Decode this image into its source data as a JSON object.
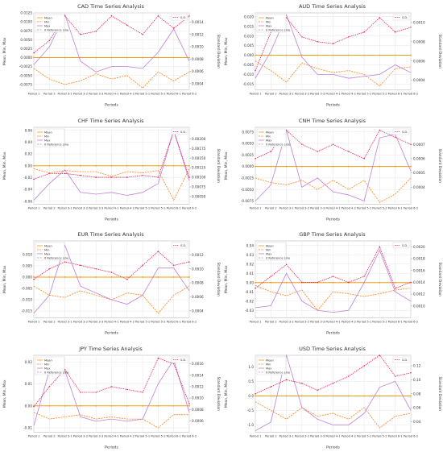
{
  "colors": {
    "mean": "#f39c12",
    "min": "#ff7f0e",
    "max": "#bf7fd8",
    "std": "#e8174f",
    "ref": "#999999",
    "grid": "#e6e6e6",
    "axis": "#333333"
  },
  "shared": {
    "periods": [
      "Period 1",
      "Period 2",
      "Period 3-1",
      "Period 3-2",
      "Period 3-3",
      "Period 4-1",
      "Period 4-2",
      "Period 5-1",
      "Period 5-2",
      "Period 6-1",
      "Period 6-2"
    ],
    "xlabel": "Periods",
    "ylabel_left": "Mean, Min, Max",
    "ylabel_right": "Standard Deviation",
    "legend_left": [
      "Mean",
      "Min",
      "Max",
      "0 Reference Line"
    ],
    "legend_right": [
      "S.D."
    ]
  },
  "chart_data": [
    {
      "type": "line",
      "title": "CAD Time Series Analysis",
      "xlabel": "Periods",
      "ylabel": "Mean, Min, Max",
      "y2label": "Standard Deviation",
      "ylim": [
        -0.009,
        0.0125
      ],
      "y2lim": [
        0.0003,
        0.00155
      ],
      "left_ticks": [
        "0.0125",
        "0.0100",
        "0.0075",
        "0.0050",
        "0.0025",
        "0.0000",
        "-0.0025",
        "-0.0050",
        "-0.0075"
      ],
      "right_ticks": [
        "0.0014",
        "0.0012",
        "0.0010",
        "0.0008",
        "0.0006",
        "0.0004"
      ],
      "series": [
        {
          "name": "Mean",
          "values": [
            0,
            0,
            0,
            0,
            0,
            0,
            0,
            0,
            0,
            0,
            0
          ]
        },
        {
          "name": "Min",
          "values": [
            -0.003,
            -0.006,
            -0.0075,
            -0.0065,
            -0.0045,
            -0.006,
            -0.005,
            -0.0085,
            -0.004,
            -0.0065,
            -0.004
          ]
        },
        {
          "name": "Max",
          "values": [
            -0.002,
            0.003,
            0.012,
            -0.001,
            -0.004,
            -0.0025,
            -0.0025,
            -0.003,
            0.0015,
            0.008,
            -0.001
          ]
        }
      ],
      "std_values": [
        0.0009,
        0.0011,
        0.0015,
        0.0012,
        0.00125,
        0.0015,
        0.00135,
        0.0012,
        0.0015,
        0.0013,
        0.0015
      ]
    },
    {
      "type": "line",
      "title": "AUD Time Series Analysis",
      "xlabel": "Periods",
      "ylabel": "Mean, Min, Max",
      "y2label": "Standard Deviation",
      "ylim": [
        -0.018,
        0.022
      ],
      "y2lim": [
        0.0003,
        0.0011
      ],
      "left_ticks": [
        "0.020",
        "0.015",
        "0.010",
        "0.005",
        "0.000",
        "-0.005",
        "-0.010",
        "-0.015"
      ],
      "right_ticks": [
        "0.0010",
        "0.0008",
        "0.0006",
        "0.0004"
      ],
      "series": [
        {
          "name": "Mean",
          "values": [
            0,
            0,
            0,
            0,
            0,
            0,
            0,
            0,
            0,
            0,
            0
          ]
        },
        {
          "name": "Min",
          "values": [
            -0.003,
            -0.008,
            -0.014,
            -0.004,
            -0.007,
            -0.009,
            -0.008,
            -0.01,
            -0.016,
            -0.007,
            -0.006
          ]
        },
        {
          "name": "Max",
          "values": [
            -0.012,
            0.002,
            0.021,
            -0.001,
            -0.01,
            -0.01,
            -0.012,
            -0.011,
            -0.01,
            -0.005,
            -0.009
          ]
        }
      ],
      "std_values": [
        0.0005,
        0.0009,
        0.00105,
        0.00085,
        0.0008,
        0.00078,
        0.00085,
        0.0009,
        0.00105,
        0.0009,
        0.00095
      ]
    },
    {
      "type": "line",
      "title": "CHF Time Series Analysis",
      "xlabel": "Periods",
      "ylabel": "Mean, Min, Max",
      "y2label": "Standard Deviation",
      "ylim": [
        -0.065,
        0.065
      ],
      "y2lim": [
        0.0003,
        0.0023
      ],
      "left_ticks": [
        "0.06",
        "0.04",
        "0.02",
        "0.00",
        "-0.02",
        "-0.04",
        "-0.06"
      ],
      "right_ticks": [
        "0.00200",
        "0.00175",
        "0.00150",
        "0.00125",
        "0.00100",
        "0.00075",
        "0.00050"
      ],
      "series": [
        {
          "name": "Mean",
          "values": [
            0,
            0,
            0,
            0,
            0,
            0,
            0,
            0,
            0,
            0,
            0
          ]
        },
        {
          "name": "Min",
          "values": [
            -0.005,
            -0.012,
            -0.008,
            -0.01,
            -0.01,
            -0.018,
            -0.01,
            -0.012,
            -0.008,
            -0.058,
            -0.005
          ]
        },
        {
          "name": "Max",
          "values": [
            -0.058,
            -0.03,
            -0.007,
            -0.045,
            -0.048,
            -0.045,
            -0.05,
            -0.045,
            -0.03,
            0.06,
            -0.025
          ]
        }
      ],
      "std_values": [
        0.00095,
        0.0011,
        0.0011,
        0.00105,
        0.001,
        0.001,
        0.001,
        0.00105,
        0.001,
        0.0022,
        0.001
      ]
    },
    {
      "type": "line",
      "title": "CNH Time Series Analysis",
      "xlabel": "Periods",
      "ylabel": "Mean, Min, Max",
      "y2label": "Standard Deviation",
      "ylim": [
        -0.0082,
        0.0085
      ],
      "y2lim": [
        0.00028,
        0.00082
      ],
      "left_ticks": [
        "0.0075",
        "0.0050",
        "0.0025",
        "0.0000",
        "-0.0025",
        "-0.0050",
        "-0.0075"
      ],
      "right_ticks": [
        "0.0007",
        "0.0006",
        "0.0005",
        "0.0004"
      ],
      "series": [
        {
          "name": "Mean",
          "values": [
            0,
            0,
            0,
            0,
            0,
            0,
            0,
            0,
            0,
            0,
            0
          ]
        },
        {
          "name": "Min",
          "values": [
            -0.0025,
            -0.0035,
            -0.004,
            -0.003,
            -0.005,
            -0.003,
            -0.005,
            -0.003,
            -0.0078,
            -0.006,
            -0.0025
          ]
        },
        {
          "name": "Max",
          "values": [
            -0.0075,
            -0.004,
            0.0078,
            -0.0045,
            -0.0025,
            -0.0055,
            -0.0062,
            -0.0075,
            0.0062,
            0.007,
            -0.001
          ]
        }
      ],
      "std_values": [
        0.0006,
        0.00065,
        0.0008,
        0.0007,
        0.00065,
        0.0007,
        0.00065,
        0.0006,
        0.0008,
        0.00075,
        0.0007
      ]
    },
    {
      "type": "line",
      "title": "EUR Time Series Analysis",
      "xlabel": "Periods",
      "ylabel": "Mean, Min, Max",
      "y2label": "Standard Deviation",
      "ylim": [
        -0.018,
        0.016
      ],
      "y2lim": [
        0.0003,
        0.0014
      ],
      "left_ticks": [
        "0.010",
        "0.005",
        "0.000",
        "-0.005",
        "-0.010",
        "-0.015"
      ],
      "right_ticks": [
        "0.0012",
        "0.0010",
        "0.0008",
        "0.0006",
        "0.0004"
      ],
      "series": [
        {
          "name": "Mean",
          "values": [
            0,
            0,
            0,
            0,
            0,
            0,
            0,
            0,
            0,
            0,
            0
          ]
        },
        {
          "name": "Min",
          "values": [
            -0.004,
            -0.008,
            -0.009,
            -0.006,
            -0.008,
            -0.01,
            -0.007,
            -0.008,
            -0.016,
            -0.008,
            -0.004
          ]
        },
        {
          "name": "Max",
          "values": [
            -0.016,
            -0.008,
            0.014,
            -0.004,
            -0.007,
            -0.01,
            -0.012,
            -0.008,
            0.004,
            0.004,
            -0.006
          ]
        }
      ],
      "std_values": [
        0.00085,
        0.001,
        0.0011,
        0.00105,
        0.001,
        0.00095,
        0.00085,
        0.00105,
        0.00125,
        0.00105,
        0.0011
      ]
    },
    {
      "type": "line",
      "title": "GBP Time Series Analysis",
      "xlabel": "Periods",
      "ylabel": "Mean, Min, Max",
      "y2label": "Standard Deviation",
      "ylim": [
        -0.038,
        0.045
      ],
      "y2lim": [
        0.0008,
        0.0021
      ],
      "left_ticks": [
        "0.04",
        "0.03",
        "0.02",
        "0.01",
        "0.00",
        "-0.01",
        "-0.02",
        "-0.03"
      ],
      "right_ticks": [
        "0.0020",
        "0.0018",
        "0.0016",
        "0.0014",
        "0.0012",
        "0.0010"
      ],
      "series": [
        {
          "name": "Mean",
          "values": [
            0,
            0,
            0,
            0,
            0,
            0,
            0,
            0,
            0,
            0,
            0
          ]
        },
        {
          "name": "Min",
          "values": [
            -0.003,
            -0.01,
            -0.014,
            -0.008,
            -0.03,
            -0.01,
            -0.012,
            -0.015,
            -0.012,
            -0.008,
            -0.006
          ]
        },
        {
          "name": "Max",
          "values": [
            -0.027,
            -0.025,
            0.01,
            -0.02,
            -0.03,
            -0.032,
            -0.03,
            0.0,
            0.035,
            -0.01,
            -0.02
          ]
        }
      ],
      "std_values": [
        0.0013,
        0.0015,
        0.0017,
        0.0014,
        0.0014,
        0.0015,
        0.0014,
        0.0015,
        0.002,
        0.0013,
        0.0014
      ]
    },
    {
      "type": "line",
      "title": "JPY Time Series Analysis",
      "xlabel": "Periods",
      "ylabel": "Mean, Min, Max",
      "y2label": "Standard Deviation",
      "ylim": [
        -0.012,
        0.023
      ],
      "y2lim": [
        0.0004,
        0.00175
      ],
      "left_ticks": [
        "0.02",
        "0.01",
        "0.00",
        "-0.01"
      ],
      "right_ticks": [
        "0.0016",
        "0.0014",
        "0.0012",
        "0.0010",
        "0.0008",
        "0.0006"
      ],
      "series": [
        {
          "name": "Mean",
          "values": [
            0,
            0,
            0,
            0,
            0,
            0,
            0,
            0,
            0,
            0,
            0
          ]
        },
        {
          "name": "Min",
          "values": [
            -0.003,
            -0.006,
            -0.005,
            -0.004,
            -0.006,
            -0.005,
            -0.006,
            -0.006,
            -0.01,
            -0.004,
            -0.004
          ]
        },
        {
          "name": "Max",
          "values": [
            -0.009,
            0.016,
            0.016,
            -0.005,
            -0.007,
            -0.006,
            -0.007,
            -0.006,
            0.01,
            0.021,
            -0.003
          ]
        }
      ],
      "std_values": [
        0.00085,
        0.0012,
        0.0015,
        0.0011,
        0.0011,
        0.0012,
        0.00115,
        0.0011,
        0.0017,
        0.0016,
        0.0009
      ]
    },
    {
      "type": "line",
      "title": "USD Time Series Analysis",
      "xlabel": "Periods",
      "ylabel": "Mean, Min, Max",
      "y2label": "Standard Deviation",
      "ylim": [
        -1.25,
        1.4
      ],
      "y2lim": [
        0.025,
        0.135
      ],
      "left_ticks": [
        "1.0",
        "0.5",
        "0.0",
        "-0.5",
        "-1.0"
      ],
      "right_ticks": [
        "0.12",
        "0.10",
        "0.08",
        "0.06",
        "0.04"
      ],
      "series": [
        {
          "name": "Mean",
          "values": [
            0,
            0,
            0,
            0,
            0,
            0,
            0,
            0,
            0,
            0,
            0
          ]
        },
        {
          "name": "Min",
          "values": [
            -0.2,
            -0.5,
            -0.8,
            -0.4,
            -0.7,
            -0.6,
            -0.8,
            -0.4,
            -1.1,
            -0.7,
            -0.6
          ]
        },
        {
          "name": "Max",
          "values": [
            -1.2,
            -0.9,
            1.4,
            -0.4,
            -0.8,
            -1.0,
            -1.0,
            -0.6,
            0.3,
            0.5,
            -0.5
          ]
        }
      ],
      "std_values": [
        0.08,
        0.09,
        0.1,
        0.095,
        0.085,
        0.095,
        0.105,
        0.12,
        0.135,
        0.105,
        0.11
      ]
    }
  ]
}
